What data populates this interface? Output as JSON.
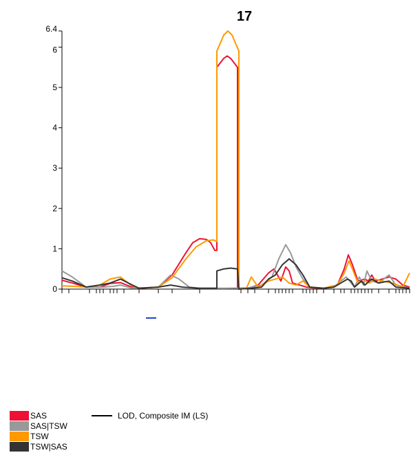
{
  "chart_data": {
    "type": "line",
    "title": "17",
    "xlabel": "",
    "ylabel": "",
    "ylim": [
      0,
      6.4
    ],
    "y_ticks": [
      "0",
      "1",
      "2",
      "3",
      "4",
      "5",
      "6",
      "6.4"
    ],
    "legend": {
      "placement": "bottom-left",
      "line_label": "LOD, Composite IM (LS)"
    },
    "series": [
      {
        "name": "SAS",
        "color": "#ee1133",
        "points": [
          [
            0,
            0.22
          ],
          [
            15,
            0.15
          ],
          [
            35,
            0.05
          ],
          [
            55,
            0.05
          ],
          [
            70,
            0.14
          ],
          [
            85,
            0.16
          ],
          [
            100,
            0.06
          ],
          [
            112,
            0.02
          ],
          [
            140,
            0.05
          ],
          [
            160,
            0.35
          ],
          [
            180,
            0.9
          ],
          [
            190,
            1.15
          ],
          [
            200,
            1.25
          ],
          [
            210,
            1.23
          ],
          [
            216,
            1.15
          ],
          [
            222,
            0.96
          ],
          [
            225,
            0.96
          ],
          [
            225,
            5.5
          ],
          [
            235,
            5.72
          ],
          [
            240,
            5.78
          ],
          [
            245,
            5.72
          ],
          [
            255,
            5.5
          ],
          [
            255,
            0.0
          ],
          [
            270,
            0.02
          ],
          [
            285,
            0.1
          ],
          [
            300,
            0.4
          ],
          [
            308,
            0.5
          ],
          [
            318,
            0.2
          ],
          [
            325,
            0.55
          ],
          [
            330,
            0.45
          ],
          [
            335,
            0.15
          ],
          [
            345,
            0.1
          ],
          [
            355,
            0.05
          ],
          [
            365,
            0.03
          ],
          [
            380,
            0.02
          ],
          [
            400,
            0.1
          ],
          [
            410,
            0.5
          ],
          [
            416,
            0.85
          ],
          [
            422,
            0.6
          ],
          [
            430,
            0.2
          ],
          [
            440,
            0.25
          ],
          [
            445,
            0.2
          ],
          [
            450,
            0.35
          ],
          [
            455,
            0.2
          ],
          [
            465,
            0.25
          ],
          [
            475,
            0.3
          ],
          [
            485,
            0.25
          ],
          [
            495,
            0.1
          ],
          [
            505,
            0.05
          ]
        ]
      },
      {
        "name": "SAS|TSW",
        "color": "#999999",
        "points": [
          [
            0,
            0.45
          ],
          [
            15,
            0.3
          ],
          [
            35,
            0.05
          ],
          [
            60,
            0.05
          ],
          [
            75,
            0.07
          ],
          [
            85,
            0.1
          ],
          [
            100,
            0.03
          ],
          [
            120,
            0.03
          ],
          [
            140,
            0.05
          ],
          [
            158,
            0.35
          ],
          [
            170,
            0.25
          ],
          [
            185,
            0.05
          ],
          [
            200,
            0.02
          ],
          [
            240,
            0.02
          ],
          [
            270,
            0.03
          ],
          [
            290,
            0.1
          ],
          [
            305,
            0.3
          ],
          [
            315,
            0.75
          ],
          [
            325,
            1.1
          ],
          [
            332,
            0.9
          ],
          [
            340,
            0.55
          ],
          [
            350,
            0.25
          ],
          [
            360,
            0.05
          ],
          [
            380,
            0.02
          ],
          [
            395,
            0.05
          ],
          [
            405,
            0.2
          ],
          [
            413,
            0.3
          ],
          [
            420,
            0.15
          ],
          [
            425,
            0.05
          ],
          [
            432,
            0.3
          ],
          [
            438,
            0.1
          ],
          [
            443,
            0.45
          ],
          [
            450,
            0.2
          ],
          [
            460,
            0.15
          ],
          [
            475,
            0.35
          ],
          [
            485,
            0.1
          ],
          [
            500,
            0.05
          ],
          [
            505,
            0.03
          ]
        ]
      },
      {
        "name": "TSW",
        "color": "#ff9900",
        "points": [
          [
            0,
            0.08
          ],
          [
            15,
            0.07
          ],
          [
            35,
            0.05
          ],
          [
            55,
            0.1
          ],
          [
            70,
            0.25
          ],
          [
            85,
            0.3
          ],
          [
            100,
            0.1
          ],
          [
            112,
            0.02
          ],
          [
            140,
            0.05
          ],
          [
            160,
            0.28
          ],
          [
            180,
            0.75
          ],
          [
            195,
            1.05
          ],
          [
            210,
            1.2
          ],
          [
            220,
            1.22
          ],
          [
            225,
            1.18
          ],
          [
            225,
            5.9
          ],
          [
            235,
            6.3
          ],
          [
            241,
            6.4
          ],
          [
            247,
            6.3
          ],
          [
            257,
            5.9
          ],
          [
            257,
            0.0
          ],
          [
            268,
            0.02
          ],
          [
            275,
            0.3
          ],
          [
            285,
            0.05
          ],
          [
            300,
            0.2
          ],
          [
            310,
            0.25
          ],
          [
            320,
            0.3
          ],
          [
            330,
            0.15
          ],
          [
            340,
            0.1
          ],
          [
            350,
            0.2
          ],
          [
            360,
            0.05
          ],
          [
            380,
            0.02
          ],
          [
            400,
            0.1
          ],
          [
            410,
            0.4
          ],
          [
            417,
            0.7
          ],
          [
            423,
            0.45
          ],
          [
            430,
            0.15
          ],
          [
            440,
            0.2
          ],
          [
            447,
            0.15
          ],
          [
            455,
            0.25
          ],
          [
            465,
            0.2
          ],
          [
            480,
            0.15
          ],
          [
            495,
            0.05
          ],
          [
            505,
            0.4
          ]
        ]
      },
      {
        "name": "TSW|SAS",
        "color": "#333333",
        "points": [
          [
            0,
            0.28
          ],
          [
            15,
            0.2
          ],
          [
            35,
            0.05
          ],
          [
            55,
            0.1
          ],
          [
            70,
            0.15
          ],
          [
            85,
            0.25
          ],
          [
            100,
            0.12
          ],
          [
            112,
            0.02
          ],
          [
            140,
            0.05
          ],
          [
            158,
            0.1
          ],
          [
            175,
            0.05
          ],
          [
            200,
            0.02
          ],
          [
            225,
            0.02
          ],
          [
            225,
            0.45
          ],
          [
            235,
            0.5
          ],
          [
            245,
            0.52
          ],
          [
            255,
            0.5
          ],
          [
            257,
            0.0
          ],
          [
            275,
            0.02
          ],
          [
            290,
            0.05
          ],
          [
            300,
            0.25
          ],
          [
            310,
            0.35
          ],
          [
            320,
            0.6
          ],
          [
            330,
            0.75
          ],
          [
            340,
            0.6
          ],
          [
            350,
            0.35
          ],
          [
            360,
            0.05
          ],
          [
            380,
            0.02
          ],
          [
            395,
            0.05
          ],
          [
            405,
            0.15
          ],
          [
            415,
            0.25
          ],
          [
            420,
            0.2
          ],
          [
            425,
            0.05
          ],
          [
            435,
            0.2
          ],
          [
            440,
            0.1
          ],
          [
            450,
            0.25
          ],
          [
            460,
            0.15
          ],
          [
            475,
            0.2
          ],
          [
            485,
            0.05
          ],
          [
            505,
            0.02
          ]
        ]
      }
    ],
    "x_tick_positions": [
      0,
      10,
      40,
      50,
      55,
      60,
      70,
      75,
      80,
      90,
      112,
      140,
      160,
      200,
      260,
      270,
      280,
      300,
      310,
      315,
      320,
      325,
      330,
      335,
      350,
      355,
      360,
      365,
      370,
      380,
      395,
      405,
      410,
      420,
      425,
      430,
      435,
      440,
      445,
      450,
      460,
      475,
      485,
      490,
      495,
      500,
      505
    ],
    "x_range": [
      0,
      505
    ]
  }
}
